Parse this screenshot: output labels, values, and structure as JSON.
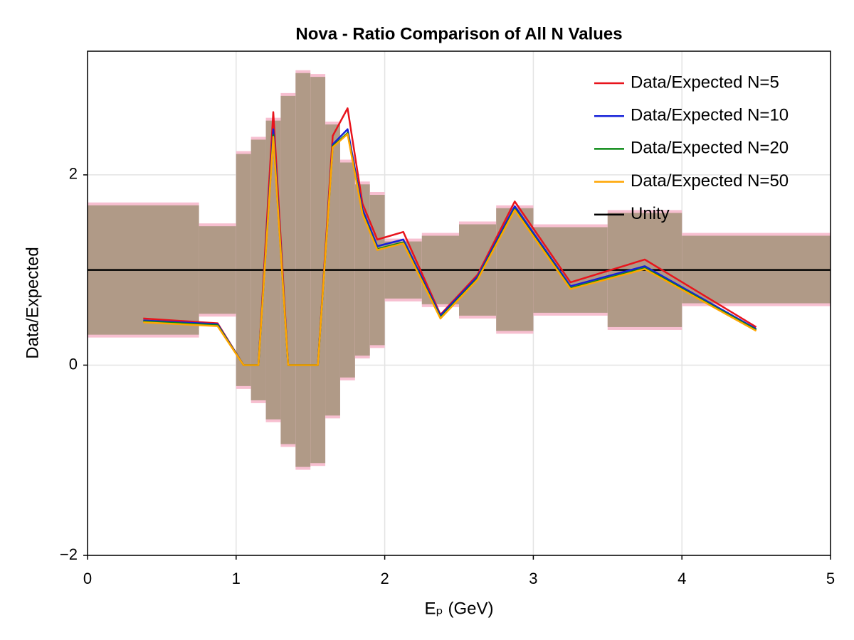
{
  "chart_data": {
    "type": "line",
    "title": "Nova - Ratio Comparison of All N Values",
    "x_label": "Eₚ (GeV)",
    "y_label": "Data/Expected",
    "xlim": [
      0,
      5
    ],
    "ylim": [
      -2,
      3.3
    ],
    "xticks": [
      0,
      1,
      2,
      3,
      4,
      5
    ],
    "yticks": [
      {
        "value": -2,
        "label": "−2"
      },
      0,
      2
    ],
    "grid": true,
    "legend": "top-right",
    "x": [
      0.375,
      0.875,
      1.05,
      1.15,
      1.25,
      1.35,
      1.55,
      1.65,
      1.75,
      1.85,
      1.95,
      2.125,
      2.375,
      2.625,
      2.875,
      3.25,
      3.75,
      4.5
    ],
    "series": [
      {
        "name": "Data/Expected N=5",
        "color": "#e8141c",
        "values": [
          0.49,
          0.44,
          0,
          0,
          2.66,
          0,
          0,
          2.41,
          2.7,
          1.7,
          1.32,
          1.4,
          0.53,
          0.95,
          1.72,
          0.87,
          1.11,
          0.4
        ]
      },
      {
        "name": "Data/Expected N=10",
        "color": "#1420d8",
        "values": [
          0.47,
          0.43,
          0,
          0,
          2.48,
          0,
          0,
          2.32,
          2.48,
          1.64,
          1.25,
          1.32,
          0.52,
          0.93,
          1.67,
          0.83,
          1.04,
          0.38
        ]
      },
      {
        "name": "Data/Expected N=20",
        "color": "#0a8a14",
        "values": [
          0.46,
          0.42,
          0,
          0,
          2.42,
          0,
          0,
          2.3,
          2.44,
          1.6,
          1.22,
          1.29,
          0.5,
          0.91,
          1.64,
          0.81,
          1.02,
          0.37
        ]
      },
      {
        "name": "Data/Expected N=50",
        "color": "#ffa500",
        "values": [
          0.45,
          0.41,
          0,
          0,
          2.4,
          0,
          0,
          2.29,
          2.43,
          1.59,
          1.21,
          1.28,
          0.49,
          0.9,
          1.63,
          0.8,
          1.01,
          0.36
        ]
      }
    ],
    "reference_line": {
      "name": "Unity",
      "color": "#000000",
      "value": 1
    },
    "band": {
      "color": "#b09a87",
      "edge_color": "#f7bfd0",
      "bins": [
        0,
        0.75,
        1.0,
        1.1,
        1.2,
        1.3,
        1.4,
        1.5,
        1.6,
        1.7,
        1.8,
        1.9,
        2.0,
        2.25,
        2.5,
        2.75,
        3.0,
        3.5,
        4.0,
        5.0
      ],
      "low": [
        0.32,
        0.54,
        -0.22,
        -0.37,
        -0.57,
        -0.83,
        -1.07,
        -1.03,
        -0.53,
        -0.13,
        0.1,
        0.21,
        0.7,
        0.64,
        0.52,
        0.36,
        0.55,
        0.4,
        0.65
      ],
      "high": [
        1.68,
        1.46,
        2.22,
        2.37,
        2.57,
        2.83,
        3.07,
        3.03,
        2.53,
        2.13,
        1.9,
        1.79,
        1.3,
        1.36,
        1.48,
        1.65,
        1.45,
        1.6,
        1.36
      ]
    }
  }
}
